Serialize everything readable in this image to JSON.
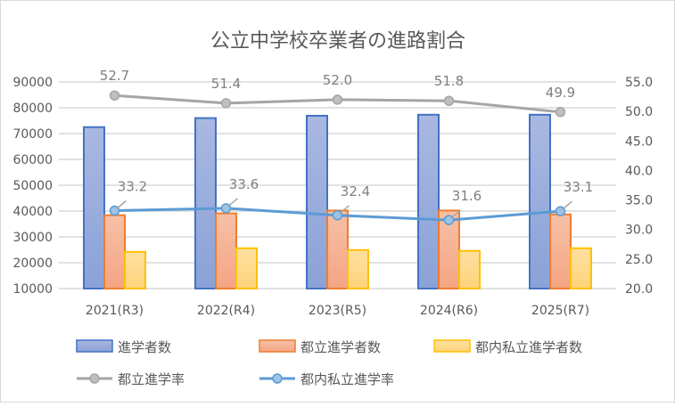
{
  "chart_data": {
    "type": "bar",
    "title": "公立中学校卒業者の進路割合",
    "categories": [
      "2021(R3)",
      "2022(R4)",
      "2023(R5)",
      "2024(R6)",
      "2025(R7)"
    ],
    "y_left": {
      "range": [
        10000,
        90000
      ],
      "step": 10000,
      "ticks": [
        "10000",
        "20000",
        "30000",
        "40000",
        "50000",
        "60000",
        "70000",
        "80000",
        "90000"
      ]
    },
    "y_right": {
      "range": [
        20.0,
        55.0
      ],
      "step": 5,
      "ticks": [
        "20.0",
        "25.0",
        "30.0",
        "35.0",
        "40.0",
        "45.0",
        "50.0",
        "55.0"
      ]
    },
    "grid": true,
    "legend_position": "bottom",
    "series": [
      {
        "name": "進学者数",
        "type": "bar",
        "axis": "left",
        "color": "#4472c4",
        "fill": "#8faadc",
        "values": [
          72500,
          76000,
          76900,
          77300,
          77300
        ]
      },
      {
        "name": "都立進学者数",
        "type": "bar",
        "axis": "left",
        "color": "#ed7d31",
        "fill": "#f4b183",
        "values": [
          38400,
          39100,
          40200,
          40200,
          38700
        ]
      },
      {
        "name": "都内私立進学者数",
        "type": "bar",
        "axis": "left",
        "color": "#ffc000",
        "fill": "#ffd98a",
        "values": [
          24200,
          25600,
          24900,
          24600,
          25600
        ]
      },
      {
        "name": "都立進学率",
        "type": "line",
        "axis": "right",
        "color": "#a5a5a5",
        "values": [
          52.7,
          51.4,
          52.0,
          51.8,
          49.9
        ],
        "labels": [
          "52.7",
          "51.4",
          "52.0",
          "51.8",
          "49.9"
        ]
      },
      {
        "name": "都内私立進学率",
        "type": "line",
        "axis": "right",
        "color": "#5b9bd5",
        "values": [
          33.2,
          33.6,
          32.4,
          31.6,
          33.1
        ],
        "labels": [
          "33.2",
          "33.6",
          "32.4",
          "31.6",
          "33.1"
        ]
      }
    ]
  }
}
